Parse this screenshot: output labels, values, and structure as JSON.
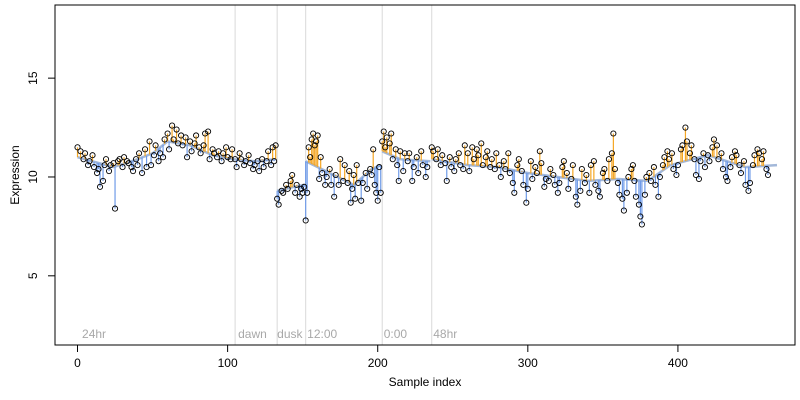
{
  "chart_data": {
    "type": "scatter",
    "xlabel": "Sample index",
    "ylabel": "Expression",
    "xlim": [
      -15,
      478
    ],
    "ylim": [
      1.5,
      18.7
    ],
    "x_ticks": [
      0,
      100,
      200,
      300,
      400
    ],
    "y_ticks": [
      5,
      10,
      15
    ],
    "segment_boundaries": [
      105,
      133,
      152,
      203,
      236
    ],
    "segment_labels": [
      {
        "x": 3,
        "label": "24hr"
      },
      {
        "x": 107,
        "label": "dawn"
      },
      {
        "x": 133,
        "label": "dusk"
      },
      {
        "x": 153,
        "label": "12:00"
      },
      {
        "x": 204,
        "label": "0:00"
      },
      {
        "x": 237,
        "label": "48hr"
      }
    ],
    "colors": {
      "above_fit": "#f5a623",
      "below_fit": "#6f9be8",
      "fit_line": "#a3b8d9",
      "grid": "#d9d9d9",
      "label": "#a8a8a8"
    },
    "fit_anchors": [
      [
        0,
        11.0
      ],
      [
        24,
        10.5
      ],
      [
        40,
        10.9
      ],
      [
        50,
        11.2
      ],
      [
        60,
        11.8
      ],
      [
        75,
        11.6
      ],
      [
        90,
        11.1
      ],
      [
        104,
        10.9
      ],
      [
        118,
        10.8
      ],
      [
        132,
        10.9
      ],
      [
        133,
        9.3
      ],
      [
        144,
        9.5
      ],
      [
        151,
        9.6
      ],
      [
        152,
        10.8
      ],
      [
        168,
        10.2
      ],
      [
        184,
        9.6
      ],
      [
        196,
        10.4
      ],
      [
        202,
        10.6
      ],
      [
        203,
        11.3
      ],
      [
        215,
        10.9
      ],
      [
        235,
        10.8
      ],
      [
        236,
        10.9
      ],
      [
        260,
        10.6
      ],
      [
        280,
        10.5
      ],
      [
        300,
        10.2
      ],
      [
        320,
        10.0
      ],
      [
        340,
        9.8
      ],
      [
        360,
        9.9
      ],
      [
        380,
        9.8
      ],
      [
        395,
        10.6
      ],
      [
        420,
        11.1
      ],
      [
        445,
        10.5
      ],
      [
        466,
        10.6
      ]
    ],
    "points": [
      [
        0,
        11.5
      ],
      [
        2,
        11.3
      ],
      [
        4,
        10.9
      ],
      [
        5,
        11.2
      ],
      [
        7,
        10.6
      ],
      [
        8,
        10.8
      ],
      [
        10,
        11.1
      ],
      [
        11,
        10.5
      ],
      [
        13,
        10.2
      ],
      [
        14,
        10.4
      ],
      [
        15,
        9.5
      ],
      [
        17,
        9.8
      ],
      [
        18,
        10.6
      ],
      [
        19,
        10.9
      ],
      [
        21,
        10.3
      ],
      [
        22,
        10.6
      ],
      [
        24,
        10.7
      ],
      [
        25,
        8.4
      ],
      [
        27,
        10.8
      ],
      [
        28,
        10.9
      ],
      [
        30,
        10.5
      ],
      [
        31,
        11.0
      ],
      [
        33,
        10.8
      ],
      [
        34,
        10.7
      ],
      [
        36,
        10.5
      ],
      [
        37,
        10.3
      ],
      [
        39,
        10.9
      ],
      [
        40,
        10.6
      ],
      [
        41,
        11.2
      ],
      [
        43,
        10.2
      ],
      [
        45,
        11.4
      ],
      [
        46,
        10.5
      ],
      [
        48,
        11.8
      ],
      [
        49,
        10.6
      ],
      [
        51,
        11.1
      ],
      [
        52,
        11.6
      ],
      [
        54,
        10.8
      ],
      [
        55,
        11.2
      ],
      [
        57,
        11.0
      ],
      [
        58,
        11.9
      ],
      [
        60,
        12.2
      ],
      [
        61,
        11.4
      ],
      [
        63,
        12.6
      ],
      [
        64,
        11.9
      ],
      [
        66,
        12.4
      ],
      [
        67,
        11.7
      ],
      [
        69,
        12.1
      ],
      [
        70,
        11.6
      ],
      [
        72,
        12.0
      ],
      [
        73,
        11.0
      ],
      [
        75,
        11.8
      ],
      [
        76,
        11.3
      ],
      [
        78,
        11.7
      ],
      [
        79,
        12.1
      ],
      [
        81,
        11.5
      ],
      [
        82,
        11.2
      ],
      [
        84,
        11.6
      ],
      [
        85,
        12.2
      ],
      [
        87,
        12.3
      ],
      [
        88,
        10.9
      ],
      [
        90,
        11.4
      ],
      [
        91,
        11.2
      ],
      [
        93,
        11.0
      ],
      [
        94,
        11.3
      ],
      [
        96,
        10.8
      ],
      [
        97,
        11.2
      ],
      [
        99,
        11.5
      ],
      [
        100,
        11.0
      ],
      [
        102,
        10.9
      ],
      [
        103,
        11.4
      ],
      [
        105,
        10.9
      ],
      [
        106,
        10.5
      ],
      [
        108,
        11.2
      ],
      [
        109,
        10.9
      ],
      [
        111,
        10.6
      ],
      [
        112,
        10.8
      ],
      [
        114,
        11.1
      ],
      [
        115,
        10.7
      ],
      [
        117,
        10.4
      ],
      [
        118,
        10.6
      ],
      [
        120,
        10.8
      ],
      [
        121,
        10.3
      ],
      [
        123,
        10.9
      ],
      [
        124,
        10.5
      ],
      [
        126,
        10.8
      ],
      [
        127,
        11.3
      ],
      [
        129,
        10.6
      ],
      [
        130,
        11.5
      ],
      [
        131,
        10.8
      ],
      [
        132,
        11.6
      ],
      [
        133,
        8.9
      ],
      [
        134,
        8.6
      ],
      [
        136,
        9.3
      ],
      [
        137,
        9.2
      ],
      [
        139,
        9.6
      ],
      [
        140,
        9.4
      ],
      [
        142,
        9.8
      ],
      [
        143,
        10.1
      ],
      [
        145,
        9.2
      ],
      [
        146,
        9.6
      ],
      [
        148,
        9.0
      ],
      [
        149,
        9.4
      ],
      [
        150,
        9.2
      ],
      [
        151,
        9.5
      ],
      [
        152,
        7.8
      ],
      [
        153,
        9.2
      ],
      [
        154,
        11.5
      ],
      [
        155,
        11.0
      ],
      [
        156,
        11.9
      ],
      [
        157,
        12.2
      ],
      [
        158,
        11.6
      ],
      [
        159,
        11.8
      ],
      [
        160,
        12.1
      ],
      [
        161,
        9.9
      ],
      [
        162,
        11.0
      ],
      [
        163,
        10.2
      ],
      [
        165,
        9.6
      ],
      [
        166,
        10.0
      ],
      [
        168,
        10.4
      ],
      [
        169,
        9.6
      ],
      [
        171,
        9.0
      ],
      [
        172,
        10.1
      ],
      [
        174,
        9.6
      ],
      [
        175,
        10.9
      ],
      [
        177,
        9.8
      ],
      [
        178,
        10.6
      ],
      [
        180,
        9.7
      ],
      [
        181,
        10.3
      ],
      [
        182,
        8.7
      ],
      [
        183,
        9.4
      ],
      [
        184,
        10.1
      ],
      [
        185,
        8.9
      ],
      [
        186,
        10.6
      ],
      [
        187,
        9.7
      ],
      [
        189,
        8.8
      ],
      [
        190,
        9.7
      ],
      [
        192,
        10.2
      ],
      [
        193,
        9.4
      ],
      [
        195,
        10.4
      ],
      [
        196,
        10.1
      ],
      [
        197,
        11.4
      ],
      [
        198,
        9.6
      ],
      [
        199,
        9.2
      ],
      [
        200,
        8.8
      ],
      [
        201,
        10.5
      ],
      [
        202,
        9.2
      ],
      [
        203,
        11.8
      ],
      [
        204,
        12.3
      ],
      [
        205,
        11.5
      ],
      [
        206,
        12.0
      ],
      [
        208,
        11.7
      ],
      [
        209,
        12.2
      ],
      [
        210,
        10.9
      ],
      [
        212,
        11.4
      ],
      [
        213,
        10.6
      ],
      [
        214,
        9.8
      ],
      [
        215,
        11.3
      ],
      [
        217,
        10.3
      ],
      [
        218,
        11.2
      ],
      [
        220,
        10.8
      ],
      [
        221,
        11.2
      ],
      [
        223,
        9.8
      ],
      [
        224,
        10.5
      ],
      [
        226,
        11.0
      ],
      [
        227,
        10.2
      ],
      [
        229,
        11.3
      ],
      [
        230,
        10.6
      ],
      [
        232,
        10.0
      ],
      [
        233,
        10.5
      ],
      [
        236,
        11.5
      ],
      [
        237,
        11.3
      ],
      [
        239,
        10.9
      ],
      [
        240,
        11.4
      ],
      [
        242,
        10.6
      ],
      [
        243,
        11.1
      ],
      [
        245,
        10.7
      ],
      [
        246,
        9.8
      ],
      [
        248,
        11.0
      ],
      [
        249,
        10.5
      ],
      [
        251,
        10.3
      ],
      [
        252,
        10.9
      ],
      [
        254,
        11.2
      ],
      [
        255,
        10.6
      ],
      [
        257,
        10.4
      ],
      [
        258,
        11.6
      ],
      [
        260,
        11.2
      ],
      [
        261,
        10.3
      ],
      [
        263,
        11.5
      ],
      [
        264,
        10.9
      ],
      [
        266,
        11.4
      ],
      [
        267,
        11.1
      ],
      [
        269,
        11.7
      ],
      [
        270,
        10.6
      ],
      [
        272,
        11.0
      ],
      [
        273,
        11.3
      ],
      [
        275,
        10.5
      ],
      [
        276,
        10.9
      ],
      [
        278,
        10.4
      ],
      [
        279,
        11.2
      ],
      [
        281,
        10.6
      ],
      [
        282,
        10.0
      ],
      [
        284,
        10.8
      ],
      [
        285,
        10.4
      ],
      [
        287,
        11.2
      ],
      [
        288,
        10.2
      ],
      [
        290,
        9.7
      ],
      [
        291,
        9.2
      ],
      [
        293,
        10.6
      ],
      [
        294,
        10.9
      ],
      [
        296,
        10.3
      ],
      [
        297,
        9.6
      ],
      [
        299,
        8.7
      ],
      [
        300,
        9.4
      ],
      [
        302,
        10.8
      ],
      [
        303,
        9.9
      ],
      [
        305,
        10.5
      ],
      [
        306,
        10.2
      ],
      [
        308,
        11.3
      ],
      [
        309,
        10.7
      ],
      [
        311,
        9.5
      ],
      [
        312,
        9.9
      ],
      [
        314,
        9.8
      ],
      [
        315,
        10.4
      ],
      [
        317,
        10.1
      ],
      [
        318,
        9.6
      ],
      [
        320,
        9.2
      ],
      [
        321,
        9.7
      ],
      [
        323,
        10.5
      ],
      [
        324,
        10.8
      ],
      [
        326,
        10.2
      ],
      [
        327,
        9.4
      ],
      [
        329,
        9.9
      ],
      [
        330,
        10.6
      ],
      [
        332,
        9.0
      ],
      [
        333,
        8.6
      ],
      [
        335,
        9.3
      ],
      [
        336,
        10.4
      ],
      [
        338,
        9.7
      ],
      [
        339,
        10.1
      ],
      [
        341,
        9.2
      ],
      [
        342,
        10.6
      ],
      [
        344,
        10.8
      ],
      [
        345,
        9.6
      ],
      [
        347,
        9.3
      ],
      [
        348,
        9.0
      ],
      [
        350,
        10.2
      ],
      [
        351,
        10.4
      ],
      [
        353,
        9.8
      ],
      [
        354,
        10.9
      ],
      [
        356,
        11.2
      ],
      [
        357,
        12.2
      ],
      [
        358,
        10.4
      ],
      [
        360,
        9.7
      ],
      [
        361,
        9.1
      ],
      [
        363,
        8.9
      ],
      [
        364,
        8.3
      ],
      [
        366,
        9.2
      ],
      [
        367,
        10.0
      ],
      [
        369,
        10.4
      ],
      [
        370,
        10.6
      ],
      [
        371,
        9.8
      ],
      [
        372,
        9.0
      ],
      [
        374,
        8.6
      ],
      [
        375,
        8.0
      ],
      [
        376,
        7.6
      ],
      [
        378,
        9.1
      ],
      [
        379,
        10.0
      ],
      [
        381,
        10.2
      ],
      [
        382,
        9.8
      ],
      [
        384,
        10.5
      ],
      [
        385,
        9.6
      ],
      [
        387,
        9.0
      ],
      [
        388,
        10.0
      ],
      [
        390,
        10.6
      ],
      [
        391,
        11.0
      ],
      [
        393,
        11.3
      ],
      [
        394,
        10.9
      ],
      [
        396,
        11.2
      ],
      [
        397,
        10.4
      ],
      [
        399,
        10.1
      ],
      [
        400,
        10.6
      ],
      [
        402,
        11.4
      ],
      [
        403,
        11.6
      ],
      [
        405,
        12.5
      ],
      [
        406,
        11.8
      ],
      [
        408,
        11.2
      ],
      [
        409,
        11.6
      ],
      [
        411,
        10.9
      ],
      [
        412,
        10.1
      ],
      [
        414,
        9.9
      ],
      [
        415,
        10.8
      ],
      [
        417,
        11.2
      ],
      [
        418,
        10.5
      ],
      [
        420,
        11.1
      ],
      [
        421,
        10.8
      ],
      [
        423,
        11.5
      ],
      [
        424,
        11.9
      ],
      [
        426,
        11.6
      ],
      [
        427,
        10.9
      ],
      [
        429,
        11.2
      ],
      [
        430,
        10.4
      ],
      [
        432,
        10.0
      ],
      [
        433,
        9.8
      ],
      [
        435,
        10.5
      ],
      [
        436,
        11.0
      ],
      [
        438,
        11.3
      ],
      [
        439,
        11.1
      ],
      [
        441,
        10.6
      ],
      [
        442,
        10.2
      ],
      [
        444,
        10.8
      ],
      [
        445,
        9.6
      ],
      [
        447,
        9.3
      ],
      [
        448,
        9.7
      ],
      [
        450,
        10.6
      ],
      [
        451,
        11.1
      ],
      [
        453,
        11.4
      ],
      [
        454,
        11.2
      ],
      [
        456,
        10.9
      ],
      [
        457,
        11.3
      ],
      [
        459,
        10.4
      ],
      [
        460,
        10.1
      ]
    ]
  }
}
